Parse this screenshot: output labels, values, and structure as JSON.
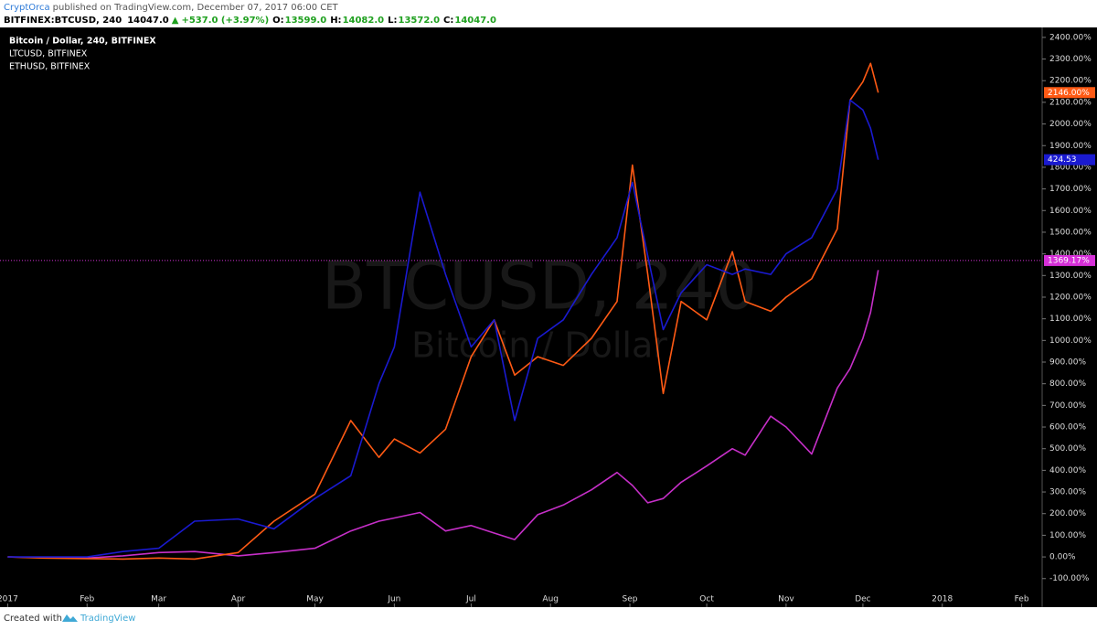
{
  "header": {
    "author": "CryptOrca",
    "published": "published on TradingView.com, December 07, 2017 06:00 CET",
    "symbol": "BITFINEX:BTCUSD, 240",
    "last": "14047.0",
    "arrow": "▲",
    "change": "+537.0 (+3.97%)",
    "ohlc": [
      {
        "key": "O:",
        "val": "13599.0"
      },
      {
        "key": "H:",
        "val": "14082.0"
      },
      {
        "key": "L:",
        "val": "13572.0"
      },
      {
        "key": "C:",
        "val": "14047.0"
      }
    ]
  },
  "chart_data": {
    "type": "line",
    "watermark": {
      "symbol": "BTCUSD, 240",
      "description": "Bitcoin / Dollar"
    },
    "x": [
      0,
      14,
      31,
      45,
      59,
      73,
      90,
      104,
      120,
      134,
      145,
      151,
      161,
      171,
      181,
      190,
      198,
      207,
      217,
      228,
      238,
      244,
      250,
      256,
      263,
      273,
      283,
      288,
      298,
      304,
      314,
      324,
      329,
      334,
      337,
      340
    ],
    "xlim": [
      -3,
      404
    ],
    "xticks": [
      {
        "value": 0,
        "label": "2017"
      },
      {
        "value": 31,
        "label": "Feb"
      },
      {
        "value": 59,
        "label": "Mar"
      },
      {
        "value": 90,
        "label": "Apr"
      },
      {
        "value": 120,
        "label": "May"
      },
      {
        "value": 151,
        "label": "Jun"
      },
      {
        "value": 181,
        "label": "Jul"
      },
      {
        "value": 212,
        "label": "Aug"
      },
      {
        "value": 243,
        "label": "Sep"
      },
      {
        "value": 273,
        "label": "Oct"
      },
      {
        "value": 304,
        "label": "Nov"
      },
      {
        "value": 334,
        "label": "Dec"
      },
      {
        "value": 365,
        "label": "2018"
      },
      {
        "value": 396,
        "label": "Feb"
      }
    ],
    "ylim": [
      -232,
      2446
    ],
    "yticks": [
      {
        "value": -100,
        "label": "-100.00%"
      },
      {
        "value": 0,
        "label": "0.00%"
      },
      {
        "value": 100,
        "label": "100.00%"
      },
      {
        "value": 200,
        "label": "200.00%"
      },
      {
        "value": 300,
        "label": "300.00%"
      },
      {
        "value": 400,
        "label": "400.00%"
      },
      {
        "value": 500,
        "label": "500.00%"
      },
      {
        "value": 600,
        "label": "600.00%"
      },
      {
        "value": 700,
        "label": "700.00%"
      },
      {
        "value": 800,
        "label": "800.00%"
      },
      {
        "value": 900,
        "label": "900.00%"
      },
      {
        "value": 1000,
        "label": "1000.00%"
      },
      {
        "value": 1100,
        "label": "1100.00%"
      },
      {
        "value": 1200,
        "label": "1200.00%"
      },
      {
        "value": 1300,
        "label": "1300.00%"
      },
      {
        "value": 1400,
        "label": "1400.00%"
      },
      {
        "value": 1500,
        "label": "1500.00%"
      },
      {
        "value": 1600,
        "label": "1600.00%"
      },
      {
        "value": 1700,
        "label": "1700.00%"
      },
      {
        "value": 1800,
        "label": "1800.00%"
      },
      {
        "value": 1900,
        "label": "1900.00%"
      },
      {
        "value": 2000,
        "label": "2000.00%"
      },
      {
        "value": 2100,
        "label": "2100.00%"
      },
      {
        "value": 2200,
        "label": "2200.00%"
      },
      {
        "value": 2300,
        "label": "2300.00%"
      },
      {
        "value": 2400,
        "label": "2400.00%"
      }
    ],
    "grid": false,
    "series": [
      {
        "name": "Bitcoin / Dollar, 240, BITFINEX",
        "color": "#c62fc8",
        "values": [
          0,
          -3,
          -5,
          5,
          20,
          25,
          5,
          20,
          40,
          120,
          165,
          180,
          205,
          120,
          145,
          110,
          80,
          195,
          240,
          310,
          390,
          330,
          250,
          270,
          345,
          420,
          500,
          470,
          650,
          600,
          475,
          780,
          870,
          1010,
          1130,
          1325
        ]
      },
      {
        "name": "LTCUSD, BITFINEX",
        "color": "#ff5a14",
        "last_label": "2146.00%",
        "values": [
          0,
          -5,
          -8,
          -10,
          -5,
          -10,
          20,
          165,
          290,
          630,
          460,
          545,
          480,
          590,
          925,
          1095,
          840,
          925,
          885,
          1010,
          1180,
          1810,
          1305,
          755,
          1180,
          1095,
          1410,
          1180,
          1135,
          1200,
          1285,
          1515,
          2110,
          2195,
          2280,
          2145
        ]
      },
      {
        "name": "ETHUSD, BITFINEX",
        "color": "#1a1ad0",
        "last_label": "424.53",
        "values": [
          0,
          0,
          0,
          25,
          40,
          165,
          175,
          130,
          270,
          375,
          800,
          970,
          1685,
          1305,
          970,
          1095,
          630,
          1010,
          1095,
          1305,
          1475,
          1730,
          1390,
          1050,
          1220,
          1350,
          1305,
          1330,
          1305,
          1400,
          1475,
          1700,
          2110,
          2065,
          1980,
          1835
        ]
      }
    ],
    "price_line": {
      "value": 1369.17,
      "label": "1369.17%",
      "color": "#d62fd8"
    }
  },
  "footer": {
    "created": "Created with",
    "brand": "TradingView"
  }
}
